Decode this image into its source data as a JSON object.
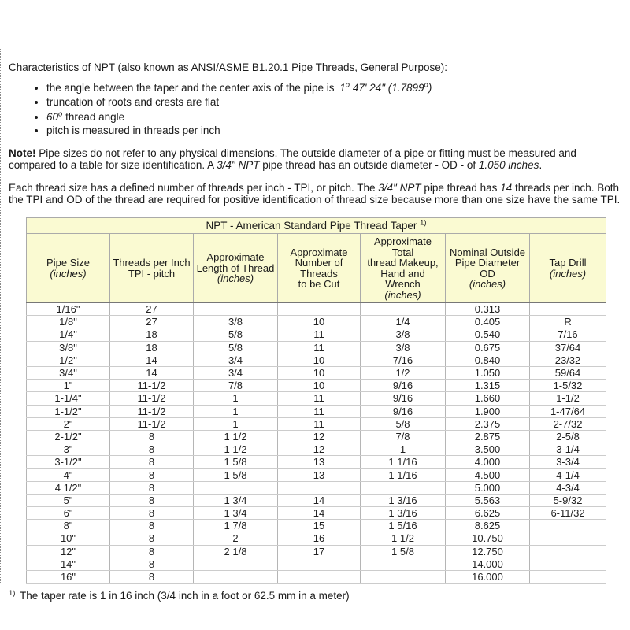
{
  "colors": {
    "table_header_bg": "#fafad2"
  },
  "intro": {
    "text": "Characteristics of NPT (also known as ANSI/ASME B1.20.1 Pipe Threads, General Purpose):"
  },
  "bullets": {
    "b1": {
      "t1": "the angle between the taper and the center axis of the pipe is ",
      "v1": "1",
      "s1": "o",
      "v2": " 47' 24\" (1.7899",
      "s2": "o",
      "v3": ")"
    },
    "b2": {
      "t1": "truncation of roots and crests are flat"
    },
    "b3": {
      "v1": "60",
      "s1": "o",
      "t1": " thread angle"
    },
    "b4": {
      "t1": "pitch is measured in threads per inch"
    }
  },
  "note": {
    "label": "Note!",
    "t1": " Pipe sizes do not refer to any physical dimensions. The outside diameter of a pipe or fitting must be measured and compared to a table for size identification. A ",
    "i1": "3/4\" NPT",
    "t2": " pipe thread has an outside diameter - OD - of ",
    "i2": "1.050 inches",
    "t3": "."
  },
  "para2": {
    "t1": "Each thread size has a defined number of threads per inch - TPI, or pitch. The ",
    "i1": "3/4\" NPT",
    "t2": " pipe thread has ",
    "i2": "14",
    "t3": " threads per inch. Both the TPI and OD of the thread are required for positive identification of thread size because more than one size have the same TPI."
  },
  "table": {
    "title": {
      "text": "NPT - American Standard Pipe Thread Taper ",
      "sup": "1)"
    },
    "columns": [
      {
        "lines": [
          "Pipe Size"
        ],
        "unit": "(inches)"
      },
      {
        "lines": [
          "Threads per Inch",
          "TPI - pitch"
        ]
      },
      {
        "lines": [
          "Approximate",
          "Length of Thread"
        ],
        "unit": "(inches)"
      },
      {
        "lines": [
          "Approximate",
          "Number of Threads",
          "to be Cut"
        ]
      },
      {
        "lines": [
          "Approximate Total",
          "thread Makeup,",
          "Hand and Wrench"
        ],
        "unit": "(inches)"
      },
      {
        "lines": [
          "Nominal Outside",
          "Pipe Diameter",
          "OD"
        ],
        "unit": "(inches)"
      },
      {
        "lines": [
          "Tap Drill"
        ],
        "unit": "(inches)"
      }
    ],
    "rows": [
      [
        "1/16\"",
        "27",
        "",
        "",
        "",
        "0.313",
        ""
      ],
      [
        "1/8\"",
        "27",
        "3/8",
        "10",
        "1/4",
        "0.405",
        "R"
      ],
      [
        "1/4\"",
        "18",
        "5/8",
        "11",
        "3/8",
        "0.540",
        "7/16"
      ],
      [
        "3/8\"",
        "18",
        "5/8",
        "11",
        "3/8",
        "0.675",
        "37/64"
      ],
      [
        "1/2\"",
        "14",
        "3/4",
        "10",
        "7/16",
        "0.840",
        "23/32"
      ],
      [
        "3/4\"",
        "14",
        "3/4",
        "10",
        "1/2",
        "1.050",
        "59/64"
      ],
      [
        "1\"",
        "11-1/2",
        "7/8",
        "10",
        "9/16",
        "1.315",
        "1-5/32"
      ],
      [
        "1-1/4\"",
        "11-1/2",
        "1",
        "11",
        "9/16",
        "1.660",
        "1-1/2"
      ],
      [
        "1-1/2\"",
        "11-1/2",
        "1",
        "11",
        "9/16",
        "1.900",
        "1-47/64"
      ],
      [
        "2\"",
        "11-1/2",
        "1",
        "11",
        "5/8",
        "2.375",
        "2-7/32"
      ],
      [
        "2-1/2\"",
        "8",
        "1 1/2",
        "12",
        "7/8",
        "2.875",
        "2-5/8"
      ],
      [
        "3\"",
        "8",
        "1 1/2",
        "12",
        "1",
        "3.500",
        "3-1/4"
      ],
      [
        "3-1/2\"",
        "8",
        "1 5/8",
        "13",
        "1 1/16",
        "4.000",
        "3-3/4"
      ],
      [
        "4\"",
        "8",
        "1 5/8",
        "13",
        "1 1/16",
        "4.500",
        "4-1/4"
      ],
      [
        "4 1/2\"",
        "8",
        "",
        "",
        "",
        "5.000",
        "4-3/4"
      ],
      [
        "5\"",
        "8",
        "1 3/4",
        "14",
        "1 3/16",
        "5.563",
        "5-9/32"
      ],
      [
        "6\"",
        "8",
        "1 3/4",
        "14",
        "1 3/16",
        "6.625",
        "6-11/32"
      ],
      [
        "8\"",
        "8",
        "1 7/8",
        "15",
        "1 5/16",
        "8.625",
        ""
      ],
      [
        "10\"",
        "8",
        "2",
        "16",
        "1 1/2",
        "10.750",
        ""
      ],
      [
        "12\"",
        "8",
        "2 1/8",
        "17",
        "1 5/8",
        "12.750",
        ""
      ],
      [
        "14\"",
        "8",
        "",
        "",
        "",
        "14.000",
        ""
      ],
      [
        "16\"",
        "8",
        "",
        "",
        "",
        "16.000",
        ""
      ]
    ]
  },
  "footnote": {
    "sup": "1)",
    "text": " The taper rate is 1 in 16 inch (3/4 inch in a foot or 62.5 mm in a meter)"
  }
}
